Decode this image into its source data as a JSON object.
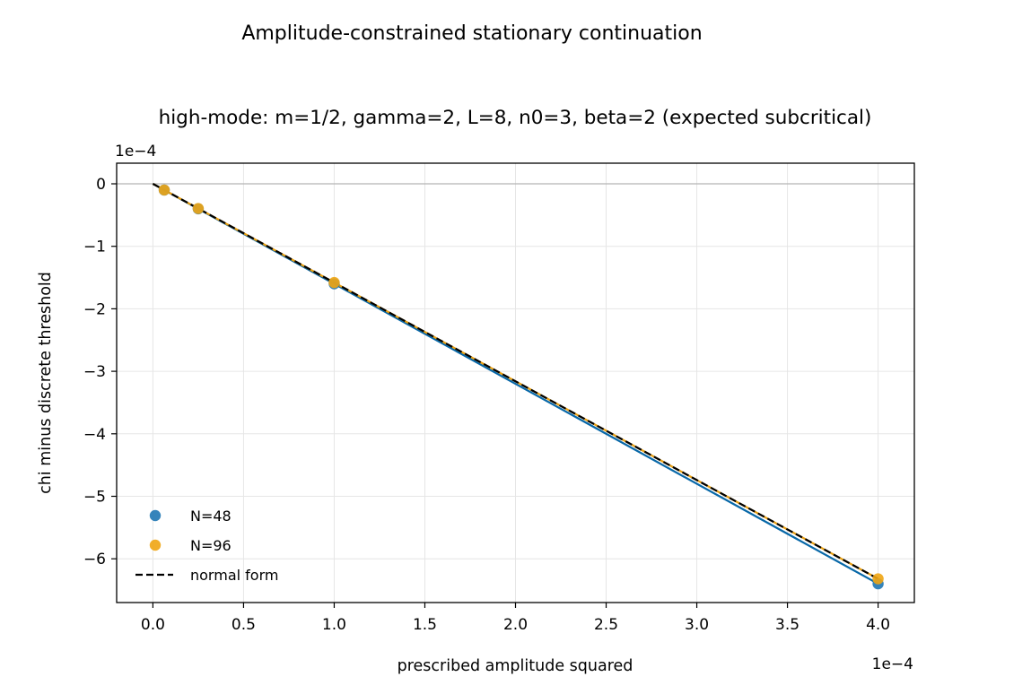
{
  "chart_data": {
    "type": "scatter",
    "suptitle": "Amplitude-constrained stationary continuation",
    "title": "high-mode: m=1/2, gamma=2, L=8, n0=3, beta=2 (expected subcritical)",
    "xlabel": "prescribed amplitude squared",
    "ylabel": "chi minus discrete threshold",
    "x_offset_label": "1e−4",
    "y_offset_label": "1e−4",
    "xlim": [
      -0.2,
      4.2
    ],
    "ylim": [
      -6.7,
      0.33
    ],
    "xticks": [
      0.0,
      0.5,
      1.0,
      1.5,
      2.0,
      2.5,
      3.0,
      3.5,
      4.0
    ],
    "xtick_labels": [
      "0.0",
      "0.5",
      "1.0",
      "1.5",
      "2.0",
      "2.5",
      "3.0",
      "3.5",
      "4.0"
    ],
    "yticks": [
      0,
      -1,
      -2,
      -3,
      -4,
      -5,
      -6
    ],
    "ytick_labels": [
      "0",
      "−1",
      "−2",
      "−3",
      "−4",
      "−5",
      "−6"
    ],
    "grid": true,
    "zero_line": true,
    "legend_position": "lower-left",
    "series": [
      {
        "name": "N=48",
        "kind": "scatter+line",
        "color": "#1f77b4",
        "line_color": "#0868a8",
        "x": [
          0.0625,
          0.25,
          1.0,
          4.0
        ],
        "y": [
          -0.1,
          -0.4,
          -1.6,
          -6.4
        ]
      },
      {
        "name": "N=96",
        "kind": "scatter+line",
        "color": "#f0a513",
        "line_color": "#e89e10",
        "x": [
          0.0625,
          0.25,
          1.0,
          4.0
        ],
        "y": [
          -0.099,
          -0.395,
          -1.58,
          -6.32
        ]
      },
      {
        "name": "normal form",
        "kind": "dashed-line",
        "color": "#000000",
        "x": [
          0.0,
          4.0
        ],
        "y": [
          0.0,
          -6.32
        ]
      }
    ]
  }
}
